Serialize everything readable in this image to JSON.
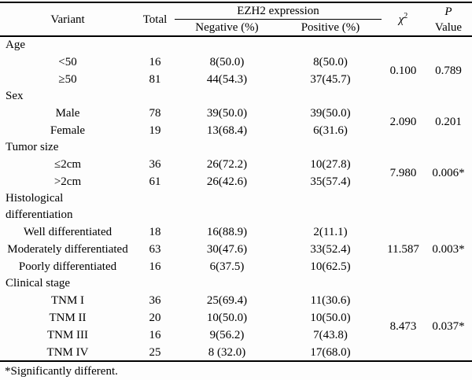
{
  "table": {
    "header": {
      "variant": "Variant",
      "total": "Total",
      "group": "EZH2 expression",
      "negative": "Negative (%)",
      "positive": "Positive (%)",
      "chi_base": "χ",
      "chi_sup": "2",
      "p_line1": "P",
      "p_line2": "Value"
    },
    "sections": [
      {
        "label": "Age",
        "chi2": "0.100",
        "p": "0.789",
        "rows": [
          {
            "variant": "<50",
            "total": "16",
            "negative": "8(50.0)",
            "positive": "8(50.0)"
          },
          {
            "variant": "≥50",
            "total": "81",
            "negative": "44(54.3)",
            "positive": "37(45.7)"
          }
        ]
      },
      {
        "label": "Sex",
        "chi2": "2.090",
        "p": "0.201",
        "rows": [
          {
            "variant": "Male",
            "total": "78",
            "negative": "39(50.0)",
            "positive": "39(50.0)"
          },
          {
            "variant": "Female",
            "total": "19",
            "negative": "13(68.4)",
            "positive": "6(31.6)"
          }
        ]
      },
      {
        "label": "Tumor size",
        "chi2": "7.980",
        "p": "0.006*",
        "rows": [
          {
            "variant": "≤2cm",
            "total": "36",
            "negative": "26(72.2)",
            "positive": "10(27.8)"
          },
          {
            "variant": ">2cm",
            "total": "61",
            "negative": "26(42.6)",
            "positive": "35(57.4)"
          }
        ]
      },
      {
        "label": "Histological differentiation",
        "chi2": "11.587",
        "p": "0.003*",
        "rows": [
          {
            "variant": "Well differentiated",
            "total": "18",
            "negative": "16(88.9)",
            "positive": "2(11.1)"
          },
          {
            "variant": "Moderately differentiated",
            "total": "63",
            "negative": "30(47.6)",
            "positive": "33(52.4)"
          },
          {
            "variant": "Poorly differentiated",
            "total": "16",
            "negative": "6(37.5)",
            "positive": "10(62.5)"
          }
        ]
      },
      {
        "label": "Clinical stage",
        "chi2": "8.473",
        "p": "0.037*",
        "rows": [
          {
            "variant": "TNM I",
            "total": "36",
            "negative": "25(69.4)",
            "positive": "11(30.6)"
          },
          {
            "variant": "TNM II",
            "total": "20",
            "negative": "10(50.0)",
            "positive": "10(50.0)"
          },
          {
            "variant": "TNM III",
            "total": "16",
            "negative": "9(56.2)",
            "positive": "7(43.8)"
          },
          {
            "variant": "TNM IV",
            "total": "25",
            "negative": "8 (32.0)",
            "positive": "17(68.0)"
          }
        ]
      }
    ],
    "footnote": "*Significantly different."
  }
}
